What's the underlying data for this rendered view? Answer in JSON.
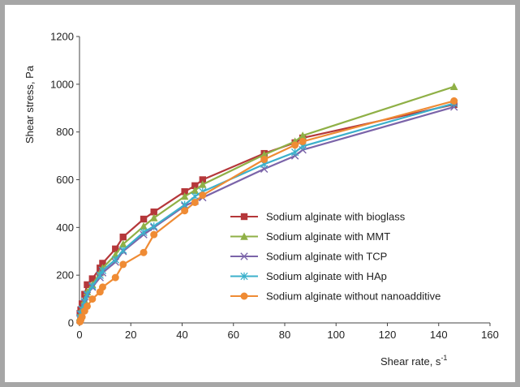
{
  "chart_data": {
    "type": "line",
    "xlabel": "Shear rate, s",
    "xlabel_sup": "-1",
    "ylabel": "Shear stress, Pa",
    "xlim": [
      0,
      160
    ],
    "ylim": [
      0,
      1200
    ],
    "xticks": [
      "0",
      "20",
      "40",
      "60",
      "80",
      "100",
      "120",
      "140",
      "160"
    ],
    "yticks": [
      "0",
      "200",
      "400",
      "600",
      "800",
      "1000",
      "1200"
    ],
    "legend_position": "center-right",
    "series": [
      {
        "name": "Sodium alginate with bioglass",
        "color": "#b5373a",
        "marker": "square",
        "x": [
          0.2,
          0.5,
          1,
          2,
          3,
          5,
          8,
          9,
          14,
          17,
          25,
          29,
          41,
          45,
          48,
          72,
          84,
          87,
          146
        ],
        "y": [
          40,
          55,
          80,
          120,
          160,
          185,
          230,
          250,
          310,
          360,
          435,
          465,
          550,
          575,
          600,
          710,
          755,
          775,
          915
        ]
      },
      {
        "name": "Sodium alginate with MMT",
        "color": "#8fb046",
        "marker": "triangle",
        "x": [
          0.2,
          0.5,
          1,
          2,
          3,
          5,
          8,
          9,
          14,
          17,
          25,
          29,
          41,
          45,
          48,
          72,
          84,
          87,
          146
        ],
        "y": [
          25,
          40,
          60,
          95,
          130,
          160,
          210,
          230,
          285,
          330,
          405,
          440,
          530,
          555,
          580,
          705,
          760,
          785,
          990
        ]
      },
      {
        "name": "Sodium alginate with TCP",
        "color": "#7b64a9",
        "marker": "cross",
        "x": [
          0.2,
          0.5,
          1,
          2,
          3,
          5,
          8,
          9,
          14,
          17,
          25,
          29,
          41,
          45,
          48,
          72,
          84,
          87,
          146
        ],
        "y": [
          20,
          35,
          55,
          85,
          115,
          150,
          190,
          210,
          255,
          300,
          370,
          400,
          490,
          510,
          525,
          645,
          700,
          725,
          905
        ]
      },
      {
        "name": "Sodium alginate with HAp",
        "color": "#3cb0cb",
        "marker": "star",
        "x": [
          0.2,
          0.5,
          1,
          2,
          3,
          5,
          8,
          9,
          14,
          17,
          25,
          29,
          41,
          45,
          48,
          72,
          84,
          87,
          146
        ],
        "y": [
          22,
          38,
          58,
          90,
          120,
          155,
          200,
          220,
          265,
          305,
          380,
          405,
          495,
          530,
          550,
          665,
          715,
          740,
          920
        ]
      },
      {
        "name": "Sodium alginate without nanoadditive",
        "color": "#ef8b34",
        "marker": "circle",
        "x": [
          0.2,
          0.5,
          1,
          2,
          3,
          5,
          8,
          9,
          14,
          17,
          25,
          29,
          41,
          45,
          48,
          72,
          84,
          87,
          146
        ],
        "y": [
          5,
          12,
          25,
          50,
          70,
          100,
          130,
          150,
          190,
          245,
          295,
          370,
          470,
          505,
          535,
          685,
          745,
          760,
          930
        ]
      }
    ]
  }
}
